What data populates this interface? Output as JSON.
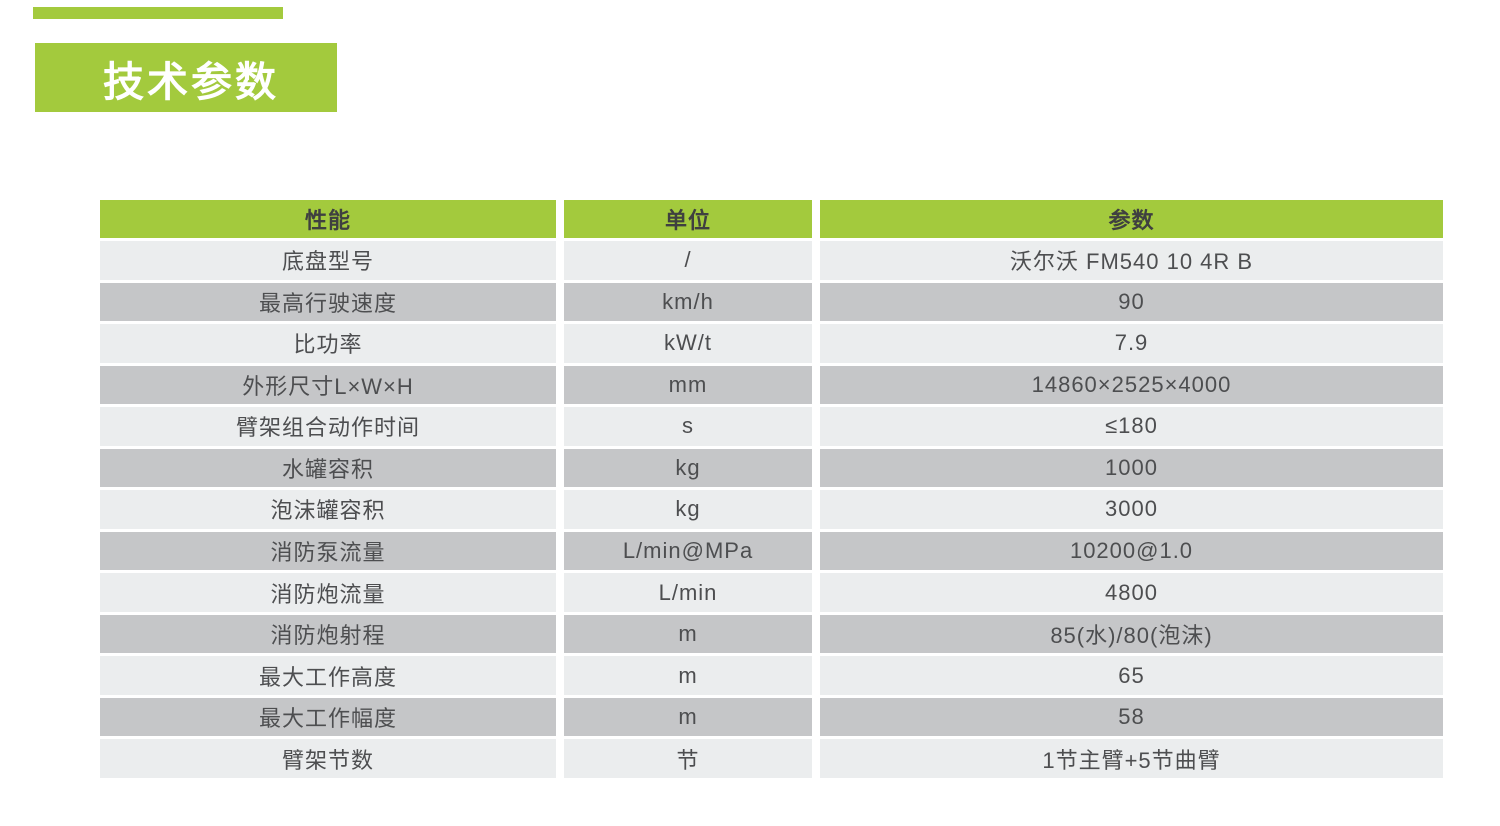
{
  "page": {
    "title": "技术参数"
  },
  "colors": {
    "accent_green": "#a3ca3d",
    "row_light": "#ebedee",
    "row_dark": "#c5c6c8",
    "header_text": "#3f4040",
    "cell_text": "#4d4e50"
  },
  "table": {
    "headers": [
      "性能",
      "单位",
      "参数"
    ],
    "rows": [
      {
        "name": "底盘型号",
        "unit": "/",
        "value": "沃尔沃 FM540 10 4R B"
      },
      {
        "name": "最高行驶速度",
        "unit": "km/h",
        "value": "90"
      },
      {
        "name": "比功率",
        "unit": "kW/t",
        "value": "7.9"
      },
      {
        "name": "外形尺寸L×W×H",
        "unit": "mm",
        "value": "14860×2525×4000"
      },
      {
        "name": "臂架组合动作时间",
        "unit": "s",
        "value": "≤180"
      },
      {
        "name": "水罐容积",
        "unit": "kg",
        "value": "1000"
      },
      {
        "name": "泡沫罐容积",
        "unit": "kg",
        "value": "3000"
      },
      {
        "name": "消防泵流量",
        "unit": "L/min@MPa",
        "value": "10200@1.0"
      },
      {
        "name": "消防炮流量",
        "unit": "L/min",
        "value": "4800"
      },
      {
        "name": "消防炮射程",
        "unit": "m",
        "value": "85(水)/80(泡沫)"
      },
      {
        "name": "最大工作高度",
        "unit": "m",
        "value": "65"
      },
      {
        "name": "最大工作幅度",
        "unit": "m",
        "value": "58"
      },
      {
        "name": "臂架节数",
        "unit": "节",
        "value": "1节主臂+5节曲臂"
      }
    ]
  }
}
